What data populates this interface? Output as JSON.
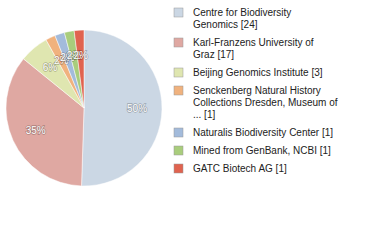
{
  "chart_data": {
    "type": "pie",
    "categories": [
      "Centre for Biodiversity\nGenomics [24]",
      "Karl-Franzens University of\nGraz [17]",
      "Beijing Genomics Institute [3]",
      "Senckenberg Natural History\nCollections Dresden, Museum of\n... [1]",
      "Naturalis Biodiversity Center [1]",
      "Mined from GenBank, NCBI [1]",
      "GATC Biotech AG [1]"
    ],
    "values": [
      50,
      35,
      6,
      2,
      2,
      2,
      2
    ],
    "value_labels": [
      "50%",
      "35%",
      "6%",
      "2%",
      "2%",
      "2%",
      "2%"
    ],
    "colors": [
      "#cbd7e4",
      "#dfa8a2",
      "#dfe6b0",
      "#f0b27e",
      "#a3bbdb",
      "#a9cd7c",
      "#e0634f"
    ],
    "data_labels": true,
    "legend": "right"
  }
}
